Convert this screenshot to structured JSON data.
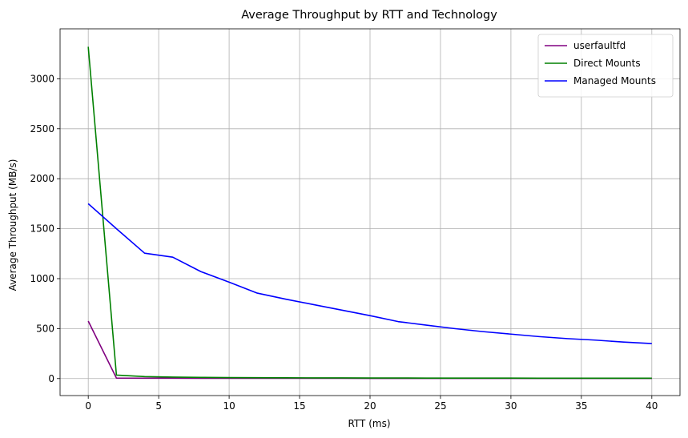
{
  "chart_data": {
    "type": "line",
    "title": "Average Throughput by RTT and Technology",
    "xlabel": "RTT (ms)",
    "ylabel": "Average Throughput (MB/s)",
    "xlim": [
      -2,
      42
    ],
    "ylim": [
      -170,
      3500
    ],
    "xticks": [
      0,
      5,
      10,
      15,
      20,
      25,
      30,
      35,
      40
    ],
    "yticks": [
      0,
      500,
      1000,
      1500,
      2000,
      2500,
      3000
    ],
    "grid": true,
    "legend_position": "top-right",
    "series": [
      {
        "name": "userfaultfd",
        "color": "#800080",
        "x": [
          0,
          2,
          4,
          6,
          8,
          10,
          12,
          14,
          16,
          18,
          20,
          22,
          24,
          26,
          28,
          30,
          32,
          34,
          36,
          38,
          40
        ],
        "y": [
          575,
          5,
          4,
          4,
          3,
          3,
          3,
          3,
          3,
          3,
          2,
          2,
          2,
          2,
          2,
          2,
          2,
          2,
          2,
          2,
          2
        ]
      },
      {
        "name": "Direct Mounts",
        "color": "#008000",
        "x": [
          0,
          2,
          4,
          6,
          8,
          10,
          12,
          14,
          16,
          18,
          20,
          22,
          24,
          26,
          28,
          30,
          32,
          34,
          36,
          38,
          40
        ],
        "y": [
          3320,
          35,
          20,
          15,
          12,
          10,
          9,
          8,
          7,
          7,
          6,
          6,
          5,
          5,
          5,
          5,
          4,
          4,
          4,
          4,
          4
        ]
      },
      {
        "name": "Managed Mounts",
        "color": "#0000ff",
        "x": [
          0,
          2,
          4,
          6,
          8,
          10,
          12,
          14,
          16,
          18,
          20,
          22,
          24,
          26,
          28,
          30,
          32,
          34,
          36,
          38,
          40
        ],
        "y": [
          1750,
          1500,
          1255,
          1215,
          1070,
          965,
          855,
          795,
          740,
          685,
          630,
          570,
          535,
          500,
          470,
          445,
          420,
          400,
          385,
          365,
          350
        ]
      }
    ]
  }
}
